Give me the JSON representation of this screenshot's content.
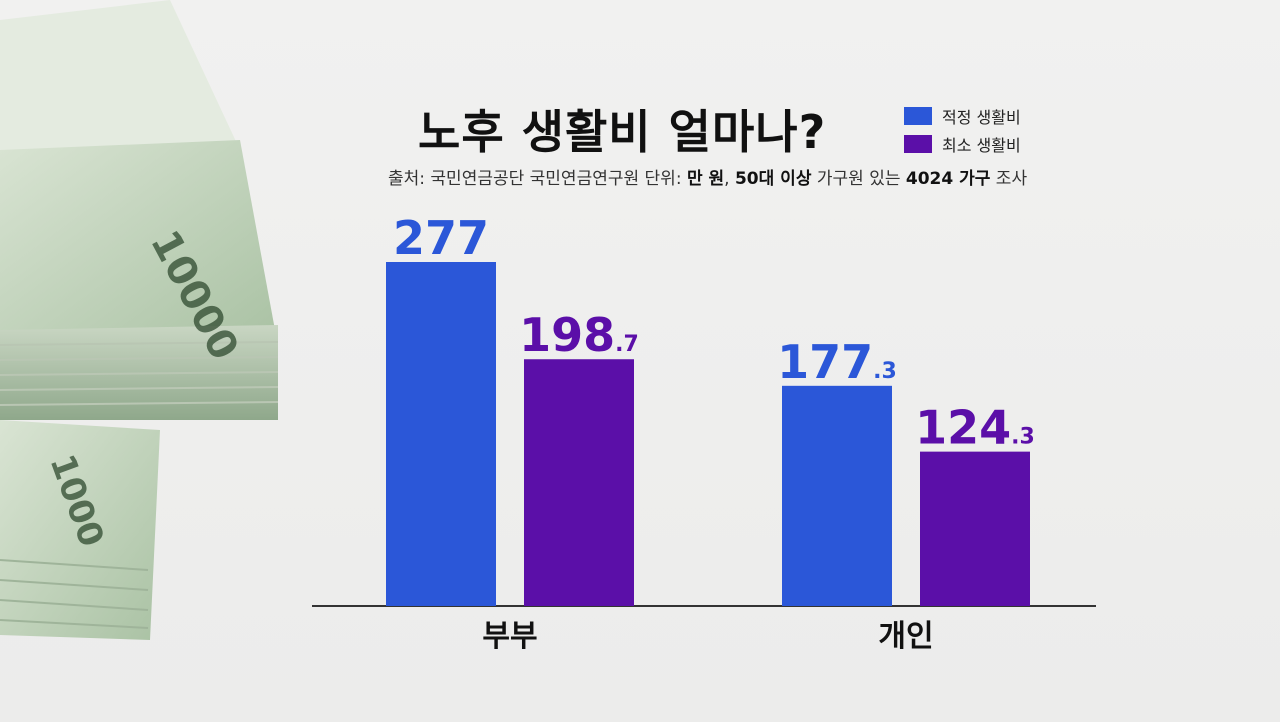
{
  "chart_data": {
    "type": "bar",
    "title": "노후 생활비 얼마나?",
    "source": {
      "prefix": "출처: 국민연금공단 국민연금연구원  단위: ",
      "unit": "만 원",
      "sep1": ", ",
      "group": "50대 이상",
      "mid": " 가구원 있는 ",
      "count": "4024 가구",
      "suffix": " 조사"
    },
    "categories": [
      "부부",
      "개인"
    ],
    "series": [
      {
        "name": "적정 생활비",
        "color": "#2b57d8",
        "values": [
          277,
          177.3
        ],
        "labels": [
          {
            "main": "277",
            "dec": ""
          },
          {
            "main": "177",
            "dec": ".3"
          }
        ]
      },
      {
        "name": "최소 생활비",
        "color": "#5b0fa8",
        "values": [
          198.7,
          124.3
        ],
        "labels": [
          {
            "main": "198",
            "dec": ".7"
          },
          {
            "main": "124",
            "dec": ".3"
          }
        ]
      }
    ],
    "ylim": [
      0,
      300
    ],
    "legend_position": "top-right",
    "grid": false
  }
}
